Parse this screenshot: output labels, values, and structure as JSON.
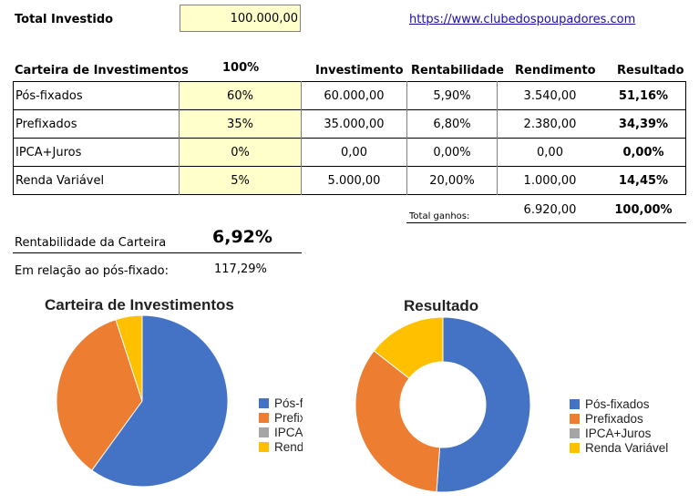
{
  "header": {
    "total_label": "Total Investido",
    "total_value": "100.000,00",
    "link_text": "https://www.clubedospoupadores.com"
  },
  "table": {
    "headers": {
      "carteira": "Carteira de Investimentos",
      "percent": "100%",
      "investimento": "Investimento",
      "rentabilidade": "Rentabilidade",
      "rendimento": "Rendimento",
      "resultado": "Resultado"
    },
    "rows": [
      {
        "name": "Pós-fixados",
        "percent": "60%",
        "investimento": "60.000,00",
        "rentabilidade": "5,90%",
        "rendimento": "3.540,00",
        "resultado": "51,16%"
      },
      {
        "name": "Prefixados",
        "percent": "35%",
        "investimento": "35.000,00",
        "rentabilidade": "6,80%",
        "rendimento": "2.380,00",
        "resultado": "34,39%"
      },
      {
        "name": "IPCA+Juros",
        "percent": "0%",
        "investimento": "0,00",
        "rentabilidade": "0,00%",
        "rendimento": "0,00",
        "resultado": "0,00%"
      },
      {
        "name": "Renda Variável",
        "percent": "5%",
        "investimento": "5.000,00",
        "rentabilidade": "20,00%",
        "rendimento": "1.000,00",
        "resultado": "14,45%"
      }
    ],
    "total_label": "Total ganhos:",
    "total_rendimento": "6.920,00",
    "total_resultado": "100,00%"
  },
  "summary": {
    "rent_label": "Rentabilidade da Carteira",
    "rent_value": "6,92%",
    "rel_label": "Em relação ao pós-fixado:",
    "rel_value": "117,29%"
  },
  "colors": {
    "pos": "#4472c4",
    "pre": "#ed7d31",
    "ipca": "#a5a5a5",
    "renda": "#ffc000",
    "input_fill": "#ffffcc"
  },
  "chart_data": [
    {
      "type": "pie",
      "title": "Carteira de Investimentos",
      "categories": [
        "Pós-fixados",
        "Prefixados",
        "IPCA+Juros",
        "Renda Variável"
      ],
      "legend_visible": [
        "Pós-f",
        "Prefix",
        "IPCA",
        "Rend"
      ],
      "values": [
        60,
        35,
        0,
        5
      ],
      "colors": [
        "#4472c4",
        "#ed7d31",
        "#a5a5a5",
        "#ffc000"
      ],
      "legend": "right"
    },
    {
      "type": "pie",
      "variant": "donut",
      "title": "Resultado",
      "categories": [
        "Pós-fixados",
        "Prefixados",
        "IPCA+Juros",
        "Renda Variável"
      ],
      "values": [
        51.16,
        34.39,
        0,
        14.45
      ],
      "colors": [
        "#4472c4",
        "#ed7d31",
        "#a5a5a5",
        "#ffc000"
      ],
      "legend": "right"
    }
  ]
}
